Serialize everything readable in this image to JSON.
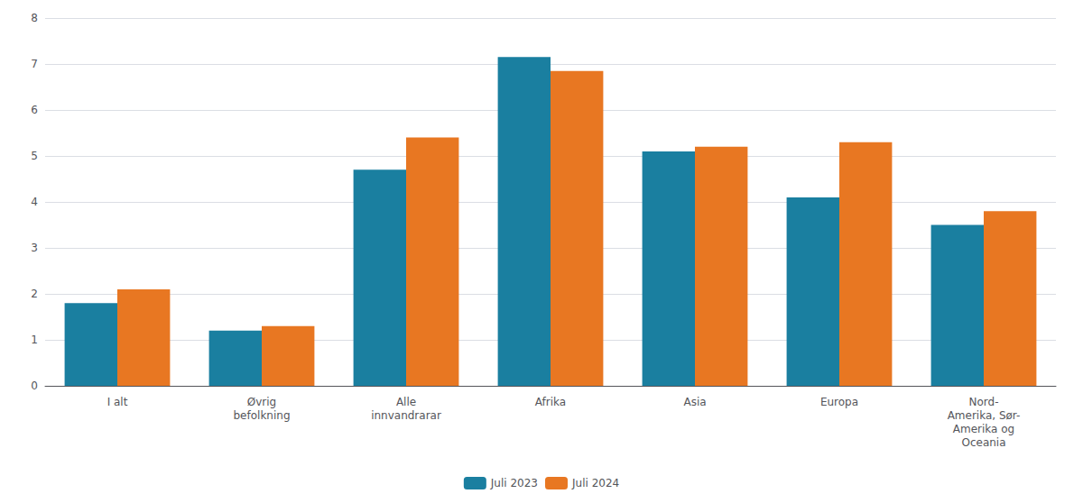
{
  "chart_data": {
    "type": "bar",
    "categories": [
      "I alt",
      "Øvrig\nbefolkning",
      "Alle\ninnvandrarar",
      "Afrika",
      "Asia",
      "Europa",
      "Nord-\nAmerika, Sør-\nAmerika og\nOceania"
    ],
    "series": [
      {
        "name": "Juli 2023",
        "color": "#1a7fa0",
        "values": [
          1.8,
          1.2,
          4.7,
          7.15,
          5.1,
          4.1,
          3.5
        ]
      },
      {
        "name": "Juli 2024",
        "color": "#e87722",
        "values": [
          2.1,
          1.3,
          5.4,
          6.85,
          5.2,
          5.3,
          3.8
        ]
      }
    ],
    "ylim": [
      0,
      8
    ],
    "yticks": [
      0,
      1,
      2,
      3,
      4,
      5,
      6,
      7,
      8
    ],
    "grid": true,
    "legend": "bottom"
  }
}
